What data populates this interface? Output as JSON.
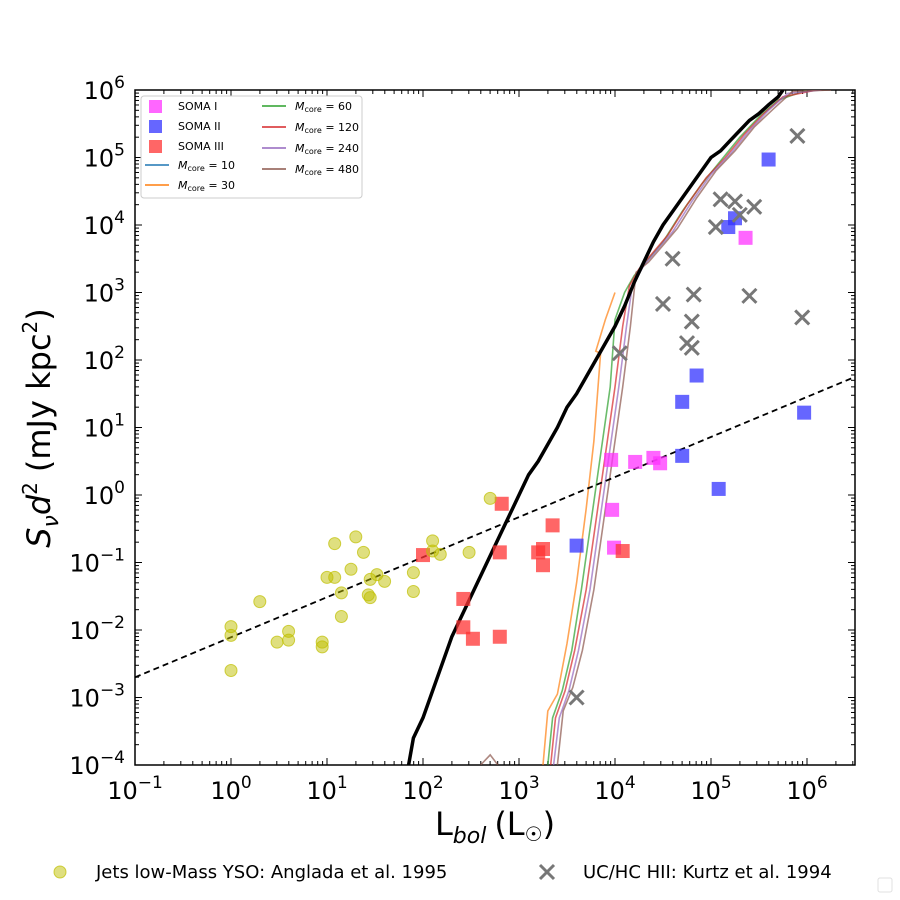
{
  "chart_data": {
    "type": "scatter",
    "xlabel_main": "L",
    "xlabel_sub": "bol",
    "xlabel_unit": "(L",
    "xlabel_sun": "☉",
    "xlabel_close": ")",
    "ylabel_main": "S",
    "ylabel_nu": "ν",
    "ylabel_d": "d",
    "ylabel_exp": "2",
    "ylabel_unit": "(mJy kpc",
    "ylabel_unit_exp": "2",
    "ylabel_close": ")",
    "x_scale": "log",
    "y_scale": "log",
    "xlim_log10": [
      -1,
      6.5
    ],
    "ylim_log10": [
      -4,
      6
    ],
    "x_ticks": [
      {
        "base": "10",
        "exp": "−1",
        "v": -1
      },
      {
        "base": "10",
        "exp": "0",
        "v": 0
      },
      {
        "base": "10",
        "exp": "1",
        "v": 1
      },
      {
        "base": "10",
        "exp": "2",
        "v": 2
      },
      {
        "base": "10",
        "exp": "3",
        "v": 3
      },
      {
        "base": "10",
        "exp": "4",
        "v": 4
      },
      {
        "base": "10",
        "exp": "5",
        "v": 5
      },
      {
        "base": "10",
        "exp": "6",
        "v": 6
      }
    ],
    "y_ticks": [
      {
        "base": "10",
        "exp": "−4",
        "v": -4
      },
      {
        "base": "10",
        "exp": "−3",
        "v": -3
      },
      {
        "base": "10",
        "exp": "−2",
        "v": -2
      },
      {
        "base": "10",
        "exp": "−1",
        "v": -1
      },
      {
        "base": "10",
        "exp": "0",
        "v": 0
      },
      {
        "base": "10",
        "exp": "1",
        "v": 1
      },
      {
        "base": "10",
        "exp": "2",
        "v": 2
      },
      {
        "base": "10",
        "exp": "3",
        "v": 3
      },
      {
        "base": "10",
        "exp": "4",
        "v": 4
      },
      {
        "base": "10",
        "exp": "5",
        "v": 5
      },
      {
        "base": "10",
        "exp": "6",
        "v": 6
      }
    ],
    "legend_items": [
      {
        "label": "SOMA I",
        "kind": "square",
        "color": "#ff33ff"
      },
      {
        "label": "SOMA II",
        "kind": "square",
        "color": "#3333ff"
      },
      {
        "label": "SOMA III",
        "kind": "square",
        "color": "#ff3333"
      },
      {
        "label_main": "M",
        "label_sub": "core",
        "label_val": " = 10",
        "kind": "line",
        "color": "#1f77b4"
      },
      {
        "label_main": "M",
        "label_sub": "core",
        "label_val": " = 30",
        "kind": "line",
        "color": "#ff7f0e"
      },
      {
        "label_main": "M",
        "label_sub": "core",
        "label_val": " = 60",
        "kind": "line",
        "color": "#2ca02c"
      },
      {
        "label_main": "M",
        "label_sub": "core",
        "label_val": " = 120",
        "kind": "line",
        "color": "#d62728"
      },
      {
        "label_main": "M",
        "label_sub": "core",
        "label_val": " = 240",
        "kind": "line",
        "color": "#9467bd"
      },
      {
        "label_main": "M",
        "label_sub": "core",
        "label_val": " = 480",
        "kind": "line",
        "color": "#8c564b"
      }
    ],
    "bottom_legend": [
      {
        "label": "Jets low-Mass YSO: Anglada et al. 1995",
        "kind": "circle",
        "color": "#bfbf00"
      },
      {
        "label": "UC/HC HII: Kurtz et al. 1994",
        "kind": "x",
        "color": "#777777"
      }
    ],
    "series": [
      {
        "name": "SOMA I",
        "marker": "square",
        "color": "#ff33ff",
        "points": [
          [
            3.96,
            0.52
          ],
          [
            3.97,
            -0.22
          ],
          [
            3.99,
            -0.78
          ],
          [
            4.21,
            0.49
          ],
          [
            4.4,
            0.55
          ],
          [
            4.47,
            0.47
          ],
          [
            5.36,
            3.81
          ]
        ]
      },
      {
        "name": "SOMA II",
        "marker": "square",
        "color": "#3333ff",
        "points": [
          [
            3.6,
            -0.75
          ],
          [
            4.7,
            1.38
          ],
          [
            4.7,
            0.58
          ],
          [
            4.85,
            1.77
          ],
          [
            5.08,
            0.09
          ],
          [
            5.18,
            3.97
          ],
          [
            5.25,
            4.1
          ],
          [
            5.6,
            4.97
          ],
          [
            5.97,
            1.22
          ]
        ]
      },
      {
        "name": "SOMA III",
        "marker": "square",
        "color": "#ff3333",
        "points": [
          [
            2.0,
            -0.89
          ],
          [
            2.42,
            -1.54
          ],
          [
            2.42,
            -1.96
          ],
          [
            2.52,
            -2.13
          ],
          [
            2.8,
            -0.85
          ],
          [
            2.8,
            -2.1
          ],
          [
            2.82,
            -0.13
          ],
          [
            3.2,
            -0.85
          ],
          [
            3.25,
            -1.04
          ],
          [
            3.25,
            -0.8
          ],
          [
            3.35,
            -0.45
          ],
          [
            4.08,
            -0.83
          ]
        ]
      },
      {
        "name": "Anglada",
        "marker": "circle",
        "color": "#bfbf00",
        "points": [
          [
            0,
            -1.95
          ],
          [
            0,
            -2.08
          ],
          [
            0,
            -2.6
          ],
          [
            0.3,
            -1.58
          ],
          [
            0.48,
            -2.18
          ],
          [
            0.6,
            -2.02
          ],
          [
            0.6,
            -2.15
          ],
          [
            0.95,
            -2.18
          ],
          [
            0.95,
            -2.25
          ],
          [
            1.0,
            -1.22
          ],
          [
            1.08,
            -1.22
          ],
          [
            1.08,
            -0.72
          ],
          [
            1.15,
            -1.45
          ],
          [
            1.15,
            -1.8
          ],
          [
            1.25,
            -1.1
          ],
          [
            1.3,
            -0.62
          ],
          [
            1.38,
            -0.85
          ],
          [
            1.43,
            -1.48
          ],
          [
            1.45,
            -1.52
          ],
          [
            1.45,
            -1.25
          ],
          [
            1.52,
            -1.18
          ],
          [
            1.6,
            -1.28
          ],
          [
            1.9,
            -1.15
          ],
          [
            1.9,
            -1.43
          ],
          [
            2.1,
            -0.68
          ],
          [
            2.1,
            -0.83
          ],
          [
            2.18,
            -0.88
          ],
          [
            2.48,
            -0.85
          ],
          [
            2.7,
            -0.05
          ]
        ]
      },
      {
        "name": "Kurtz",
        "marker": "x",
        "color": "#777777",
        "points": [
          [
            3.6,
            -3.0
          ],
          [
            4.05,
            2.1
          ],
          [
            4.5,
            2.83
          ],
          [
            4.6,
            3.5
          ],
          [
            4.75,
            2.25
          ],
          [
            4.8,
            2.18
          ],
          [
            4.8,
            2.57
          ],
          [
            4.82,
            2.97
          ],
          [
            5.05,
            3.97
          ],
          [
            5.1,
            4.38
          ],
          [
            5.25,
            4.35
          ],
          [
            5.3,
            4.15
          ],
          [
            5.4,
            2.95
          ],
          [
            5.45,
            4.27
          ],
          [
            5.9,
            5.32
          ],
          [
            5.95,
            2.63
          ]
        ]
      }
    ],
    "reference_line": {
      "name": "dashed fit",
      "style": "dashed",
      "color": "#000000",
      "points": [
        [
          -1,
          -2.7
        ],
        [
          6.5,
          1.75
        ]
      ]
    },
    "black_curve": {
      "name": "thick black",
      "color": "#000000",
      "points": [
        [
          1.85,
          -4.0
        ],
        [
          1.9,
          -3.6
        ],
        [
          2.0,
          -3.3
        ],
        [
          2.1,
          -2.9
        ],
        [
          2.2,
          -2.5
        ],
        [
          2.3,
          -2.1
        ],
        [
          2.4,
          -1.8
        ],
        [
          2.5,
          -1.5
        ],
        [
          2.6,
          -1.2
        ],
        [
          2.7,
          -0.9
        ],
        [
          2.8,
          -0.6
        ],
        [
          2.9,
          -0.3
        ],
        [
          3.0,
          0.0
        ],
        [
          3.1,
          0.3
        ],
        [
          3.2,
          0.5
        ],
        [
          3.3,
          0.75
        ],
        [
          3.4,
          1.0
        ],
        [
          3.5,
          1.3
        ],
        [
          3.6,
          1.5
        ],
        [
          3.7,
          1.75
        ],
        [
          3.8,
          2.0
        ],
        [
          3.9,
          2.25
        ],
        [
          4.0,
          2.5
        ],
        [
          4.1,
          2.8
        ],
        [
          4.2,
          3.15
        ],
        [
          4.3,
          3.45
        ],
        [
          4.4,
          3.75
        ],
        [
          4.5,
          4.0
        ],
        [
          4.6,
          4.2
        ],
        [
          4.7,
          4.4
        ],
        [
          4.8,
          4.6
        ],
        [
          4.9,
          4.8
        ],
        [
          5.0,
          5.0
        ],
        [
          5.1,
          5.1
        ],
        [
          5.2,
          5.25
        ],
        [
          5.3,
          5.4
        ],
        [
          5.4,
          5.55
        ],
        [
          5.5,
          5.65
        ],
        [
          5.6,
          5.78
        ],
        [
          5.7,
          5.9
        ],
        [
          5.75,
          6.0
        ]
      ]
    },
    "model_tracks": [
      {
        "name": "M_core=30",
        "color": "#ff7f0e",
        "points": [
          [
            3.25,
            -4.0
          ],
          [
            3.3,
            -3.2
          ],
          [
            3.4,
            -2.95
          ],
          [
            3.5,
            -2.2
          ],
          [
            3.6,
            -1.3
          ],
          [
            3.7,
            -0.2
          ],
          [
            3.78,
            0.8
          ],
          [
            3.85,
            2.1
          ],
          [
            3.8,
            2.13
          ],
          [
            3.9,
            2.6
          ],
          [
            4.0,
            3.0
          ]
        ]
      },
      {
        "name": "M_core=60",
        "color": "#2ca02c",
        "points": [
          [
            3.3,
            -4.0
          ],
          [
            3.35,
            -3.3
          ],
          [
            3.45,
            -2.9
          ],
          [
            3.55,
            -2.3
          ],
          [
            3.65,
            -1.4
          ],
          [
            3.75,
            -0.4
          ],
          [
            3.85,
            0.6
          ],
          [
            3.95,
            1.6
          ],
          [
            4.0,
            2.6
          ],
          [
            4.1,
            3.0
          ],
          [
            4.2,
            3.25
          ],
          [
            4.35,
            3.5
          ],
          [
            4.5,
            3.75
          ],
          [
            4.7,
            4.2
          ],
          [
            4.9,
            4.6
          ],
          [
            5.1,
            4.95
          ],
          [
            5.3,
            5.3
          ],
          [
            5.5,
            5.6
          ],
          [
            5.7,
            5.85
          ],
          [
            6.0,
            6.0
          ]
        ]
      },
      {
        "name": "M_core=120",
        "color": "#d62728",
        "points": [
          [
            3.33,
            -4.0
          ],
          [
            3.38,
            -3.3
          ],
          [
            3.48,
            -2.9
          ],
          [
            3.58,
            -2.3
          ],
          [
            3.7,
            -1.4
          ],
          [
            3.8,
            -0.4
          ],
          [
            3.9,
            0.6
          ],
          [
            4.0,
            1.6
          ],
          [
            4.08,
            2.5
          ],
          [
            4.15,
            3.1
          ],
          [
            4.25,
            3.35
          ],
          [
            4.4,
            3.6
          ],
          [
            4.55,
            3.85
          ],
          [
            4.75,
            4.3
          ],
          [
            4.95,
            4.7
          ],
          [
            5.15,
            5.0
          ],
          [
            5.35,
            5.35
          ],
          [
            5.55,
            5.65
          ],
          [
            5.75,
            5.9
          ],
          [
            6.1,
            6.0
          ]
        ]
      },
      {
        "name": "M_core=240",
        "color": "#9467bd",
        "points": [
          [
            3.36,
            -4.0
          ],
          [
            3.42,
            -3.3
          ],
          [
            3.52,
            -2.9
          ],
          [
            3.62,
            -2.3
          ],
          [
            3.74,
            -1.4
          ],
          [
            3.84,
            -0.4
          ],
          [
            3.94,
            0.6
          ],
          [
            4.04,
            1.6
          ],
          [
            4.12,
            2.5
          ],
          [
            4.18,
            3.1
          ],
          [
            4.3,
            3.4
          ],
          [
            4.45,
            3.65
          ],
          [
            4.6,
            3.9
          ],
          [
            4.8,
            4.35
          ],
          [
            5.0,
            4.75
          ],
          [
            5.2,
            5.05
          ],
          [
            5.4,
            5.4
          ],
          [
            5.6,
            5.7
          ],
          [
            5.8,
            5.95
          ],
          [
            6.15,
            6.0
          ]
        ]
      },
      {
        "name": "M_core=480",
        "color": "#8c564b",
        "points": [
          [
            3.4,
            -4.0
          ],
          [
            3.46,
            -3.2
          ],
          [
            3.56,
            -2.85
          ],
          [
            3.66,
            -2.3
          ],
          [
            3.78,
            -1.4
          ],
          [
            3.88,
            -0.4
          ],
          [
            3.98,
            0.6
          ],
          [
            4.08,
            1.6
          ],
          [
            4.16,
            2.5
          ],
          [
            4.22,
            3.3
          ],
          [
            4.35,
            3.45
          ],
          [
            4.5,
            3.7
          ],
          [
            4.65,
            3.95
          ],
          [
            4.85,
            4.4
          ],
          [
            5.05,
            4.8
          ],
          [
            5.25,
            5.1
          ],
          [
            5.45,
            5.45
          ],
          [
            5.65,
            5.72
          ],
          [
            5.85,
            5.98
          ],
          [
            6.25,
            6.0
          ]
        ]
      },
      {
        "name": "small track",
        "color": "#8c564b",
        "points": [
          [
            2.6,
            -4.0
          ],
          [
            2.7,
            -3.85
          ],
          [
            2.78,
            -4.0
          ]
        ]
      }
    ]
  }
}
